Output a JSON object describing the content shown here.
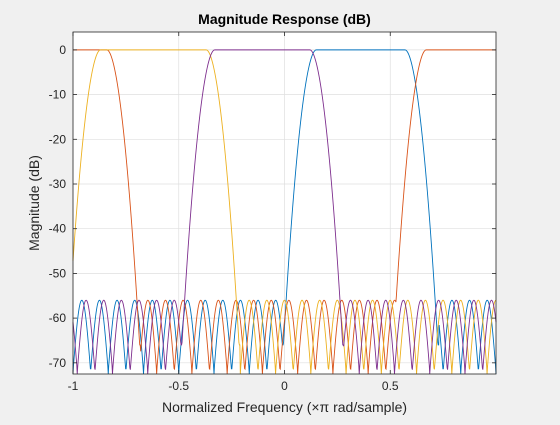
{
  "chart_data": {
    "type": "line",
    "title": "Magnitude Response (dB)",
    "xlabel": "Normalized Frequency (×π rad/sample)",
    "ylabel": "Magnitude (dB)",
    "xlim": [
      -1,
      1
    ],
    "ylim": [
      -72.5,
      4
    ],
    "xticks": [
      -1,
      -0.5,
      0,
      0.5
    ],
    "xtick_labels": [
      "-1",
      "-0.5",
      "0",
      "0.5"
    ],
    "yticks": [
      0,
      -10,
      -20,
      -30,
      -40,
      -50,
      -60,
      -70
    ],
    "ytick_labels": [
      "0",
      "-10",
      "-20",
      "-30",
      "-40",
      "-50",
      "-60",
      "-70"
    ],
    "grid": true,
    "stopband_floor_db": -60,
    "series": [
      {
        "color": "#0072BD",
        "passband": [
          0.15,
          0.57
        ]
      },
      {
        "color": "#D95319",
        "passband": [
          -1.0,
          -0.84
        ],
        "passband2": [
          0.67,
          1.0
        ]
      },
      {
        "color": "#EDB120",
        "passband": [
          -0.87,
          -0.37
        ]
      },
      {
        "color": "#7E2F8E",
        "passband": [
          -0.33,
          0.12
        ]
      }
    ]
  }
}
